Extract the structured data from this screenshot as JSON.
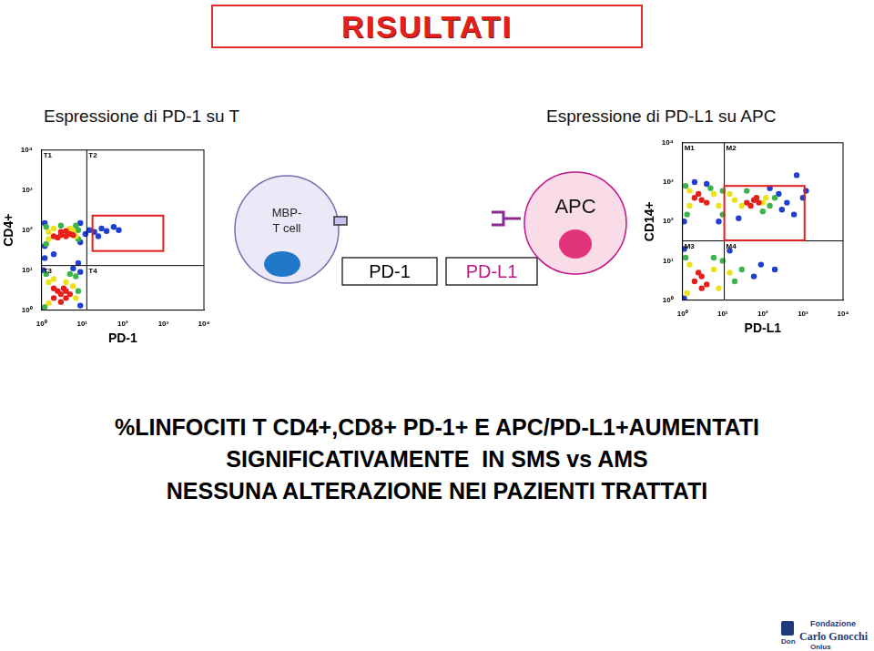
{
  "header": {
    "title": "RISULTATI"
  },
  "chart_data": [
    {
      "type": "scatter",
      "title": "Espressione di PD-1 su T",
      "x_label": "PD-1",
      "y_label": "CD4+",
      "log": true,
      "grid": false,
      "tick_labels": true,
      "xlim": [
        1,
        10000
      ],
      "ylim": [
        1,
        10000
      ],
      "xticks": [
        {
          "value": 1,
          "label": "10⁰"
        },
        {
          "value": 10,
          "label": "10¹"
        },
        {
          "value": 100,
          "label": "10²"
        },
        {
          "value": 1000,
          "label": "10³"
        },
        {
          "value": 10000,
          "label": "10⁴"
        }
      ],
      "yticks": [
        {
          "value": 1,
          "label": "10⁰"
        },
        {
          "value": 10,
          "label": "10¹"
        },
        {
          "value": 100,
          "label": "10²"
        },
        {
          "value": 1000,
          "label": "10³"
        },
        {
          "value": 10000,
          "label": "10⁴"
        }
      ],
      "quadrant": {
        "x": 13,
        "y": 13,
        "labels": [
          "T1",
          "T2",
          "T3",
          "T4"
        ]
      },
      "gate": {
        "xlim": [
          18,
          1000
        ],
        "ylim": [
          30,
          230
        ],
        "color": "#e02020"
      },
      "series": [
        {
          "color": "#e4201a",
          "x": [
            2,
            3,
            4,
            5,
            3,
            2.5,
            4,
            6,
            2,
            3,
            4,
            2.5,
            3.5,
            5,
            2,
            3,
            4
          ],
          "y": [
            70,
            75,
            70,
            80,
            90,
            65,
            95,
            75,
            2,
            2.5,
            2,
            3,
            3.5,
            2.5,
            3.5,
            1.6,
            3
          ]
        },
        {
          "color": "#ece21c",
          "x": [
            1.5,
            7,
            6,
            2,
            5,
            1.5,
            1.5,
            6,
            7,
            1.5,
            4,
            2
          ],
          "y": [
            60,
            70,
            95,
            110,
            110,
            90,
            5,
            4,
            2,
            1.5,
            5,
            6
          ]
        },
        {
          "color": "#3cb44a",
          "x": [
            1.3,
            8,
            8,
            3,
            1.3,
            7,
            1.3,
            7,
            8,
            1.2,
            5
          ],
          "y": [
            45,
            60,
            100,
            130,
            120,
            130,
            8,
            7,
            3,
            1.2,
            8
          ]
        },
        {
          "color": "#1f3fd0",
          "x": [
            1.2,
            9,
            12,
            15,
            20,
            30,
            40,
            60,
            25,
            1.2,
            9,
            80,
            1.1,
            9,
            9,
            1.1,
            6,
            1.2,
            2,
            8
          ],
          "y": [
            40,
            50,
            80,
            100,
            90,
            110,
            95,
            120,
            70,
            150,
            150,
            100,
            10,
            9,
            1.3,
            1.05,
            11,
            20,
            25,
            15
          ]
        }
      ]
    },
    {
      "type": "scatter",
      "title": "Espressione di PD-L1 su APC",
      "x_label": "PD-L1",
      "y_label": "CD14+",
      "log": true,
      "grid": false,
      "tick_labels": true,
      "xlim": [
        1,
        10000
      ],
      "ylim": [
        1,
        10000
      ],
      "xticks": [
        {
          "value": 1,
          "label": "10⁰"
        },
        {
          "value": 10,
          "label": "10¹"
        },
        {
          "value": 100,
          "label": "10²"
        },
        {
          "value": 1000,
          "label": "10³"
        },
        {
          "value": 10000,
          "label": "10⁴"
        }
      ],
      "yticks": [
        {
          "value": 1,
          "label": "10⁰"
        },
        {
          "value": 10,
          "label": "10¹"
        },
        {
          "value": 100,
          "label": "10²"
        },
        {
          "value": 1000,
          "label": "10³"
        },
        {
          "value": 10000,
          "label": "10⁴"
        }
      ],
      "quadrant": {
        "x": 11,
        "y": 32,
        "labels": [
          "M1",
          "M2",
          "M3",
          "M4"
        ]
      },
      "gate": {
        "xlim": [
          11,
          1100
        ],
        "ylim": [
          33,
          800
        ],
        "color": "#e02020"
      },
      "series": [
        {
          "color": "#e4201a",
          "x": [
            2,
            3,
            2.5,
            4,
            40,
            60,
            80,
            50,
            70,
            2,
            3,
            4,
            3,
            2.5
          ],
          "y": [
            400,
            350,
            500,
            300,
            300,
            350,
            300,
            250,
            400,
            3,
            4,
            2.5,
            2,
            5
          ]
        },
        {
          "color": "#ece21c",
          "x": [
            1.5,
            6,
            8,
            20,
            30,
            100,
            120,
            1.5,
            15,
            1.5,
            6,
            8,
            15,
            1.3
          ],
          "y": [
            250,
            500,
            250,
            350,
            250,
            300,
            400,
            600,
            500,
            8,
            6,
            2,
            5,
            1.5
          ]
        },
        {
          "color": "#3cb44a",
          "x": [
            1.3,
            5,
            10,
            150,
            200,
            10,
            1.2,
            40,
            100,
            1.2,
            10,
            20,
            30,
            6
          ],
          "y": [
            150,
            700,
            150,
            250,
            400,
            600,
            800,
            600,
            180,
            12,
            10,
            3,
            6,
            12
          ]
        },
        {
          "color": "#1f3fd0",
          "x": [
            1.1,
            4,
            250,
            300,
            400,
            600,
            1000,
            8,
            2,
            25,
            150,
            1.1,
            60,
            90,
            15,
            1.1,
            200,
            700,
            1200
          ],
          "y": [
            100,
            900,
            500,
            200,
            300,
            150,
            400,
            100,
            1000,
            120,
            700,
            20,
            4,
            8,
            18,
            1.1,
            6,
            1500,
            600
          ]
        }
      ]
    }
  ],
  "diagram": {
    "t_cell": [
      "MBP-",
      "T cell"
    ],
    "receptor": "PD-1",
    "ligand": "PD-L1",
    "apc": "APC"
  },
  "conclusion": [
    "%LINFOCITI T CD4+,CD8+ PD-1+ E APC/PD-L1+AUMENTATI",
    "SIGNIFICATIVAMENTE  IN SMS vs AMS",
    "NESSUNA ALTERAZIONE NEI PAZIENTI TRATTATI"
  ],
  "logo": [
    "Fondazione",
    "Don",
    "Carlo Gnocchi",
    "Onlus"
  ]
}
